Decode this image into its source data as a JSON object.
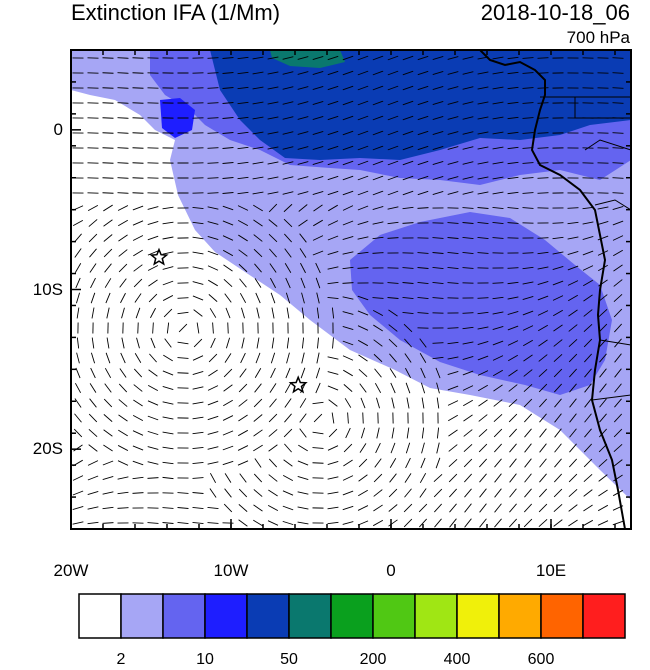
{
  "title": "Extinction IFA (1/Mm)",
  "datetime": "2018-10-18_06",
  "level": "700 hPa",
  "axes": {
    "lon_range": [
      -20,
      15
    ],
    "lat_range": [
      -25,
      5
    ],
    "lon_ticks": [
      {
        "value": -20,
        "label": "20W"
      },
      {
        "value": -10,
        "label": "10W"
      },
      {
        "value": 0,
        "label": "0"
      },
      {
        "value": 10,
        "label": "10E"
      }
    ],
    "lat_ticks": [
      {
        "value": 0,
        "label": "0"
      },
      {
        "value": -10,
        "label": "10S"
      },
      {
        "value": -20,
        "label": "20S"
      }
    ]
  },
  "markers": [
    {
      "type": "star",
      "lon": -14.5,
      "lat": -8.0
    },
    {
      "type": "star",
      "lon": -5.8,
      "lat": -16.0
    }
  ],
  "colorbar": {
    "colors": [
      "#ffffff",
      "#a6a6f5",
      "#6464f0",
      "#1e1eff",
      "#0a3cb4",
      "#0a786e",
      "#0aa01e",
      "#50c814",
      "#a0e614",
      "#f0f00a",
      "#ffaa00",
      "#ff6400",
      "#ff1e1e"
    ],
    "labels": [
      {
        "after_box": 1,
        "text": "2"
      },
      {
        "after_box": 3,
        "text": "10"
      },
      {
        "after_box": 5,
        "text": "50"
      },
      {
        "after_box": 7,
        "text": "200"
      },
      {
        "after_box": 9,
        "text": "400"
      },
      {
        "after_box": 11,
        "text": "600"
      }
    ]
  }
}
